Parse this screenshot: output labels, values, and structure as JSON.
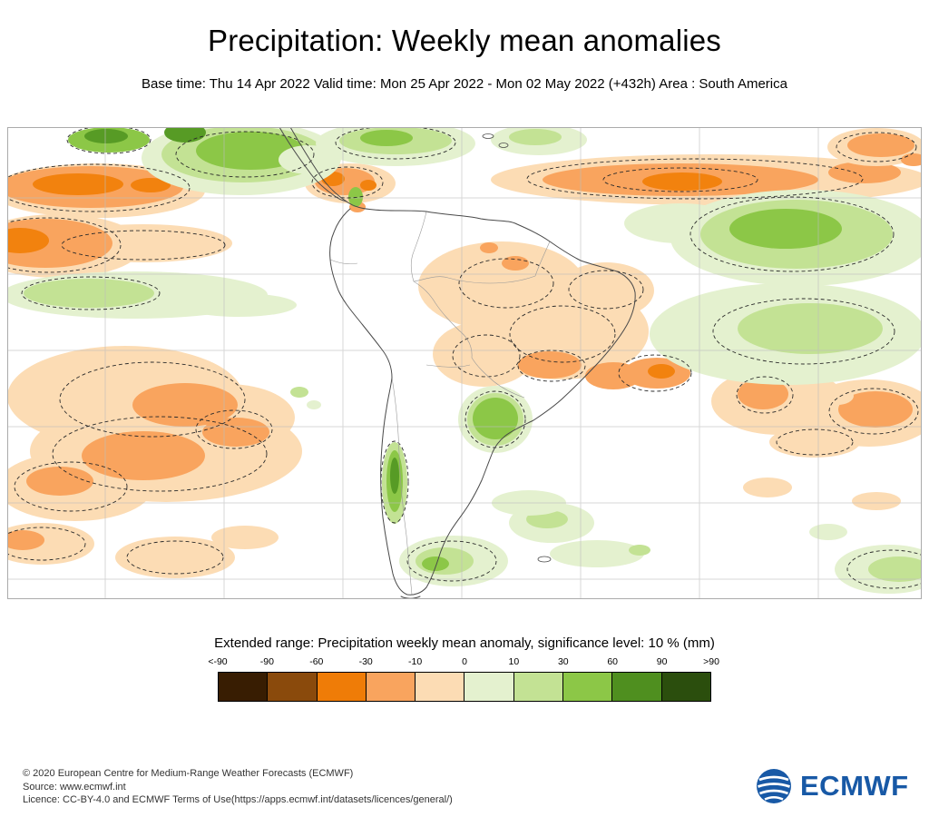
{
  "header": {
    "title": "Precipitation: Weekly mean anomalies",
    "subtitle": "Base time: Thu 14 Apr 2022 Valid time: Mon 25 Apr 2022 - Mon 02 May 2022 (+432h) Area : South America"
  },
  "map": {
    "type": "filled-contour anomaly map",
    "area": "South America",
    "positive_anomaly_color_family": "green",
    "negative_anomaly_color_family": "orange-brown",
    "significance_contour_style": "dashed"
  },
  "legend": {
    "title": "Extended range: Precipitation weekly mean anomaly, significance level: 10 % (mm)",
    "ticks": [
      "<-90",
      "-90",
      "-60",
      "-30",
      "-10",
      "0",
      "10",
      "30",
      "60",
      "90",
      ">90"
    ],
    "colors": [
      "#381d02",
      "#8a4a0c",
      "#ef7c07",
      "#f9a45e",
      "#fcdcb4",
      "#e4f1cf",
      "#c3e294",
      "#8cc747",
      "#4f8f1f",
      "#2b4e0d"
    ]
  },
  "footer": {
    "line1": "© 2020 European Centre for Medium-Range Weather Forecasts (ECMWF)",
    "line2": "Source: www.ecmwf.int",
    "line3": "Licence: CC-BY-4.0 and ECMWF Terms of Use(https://apps.ecmwf.int/datasets/licences/general/)",
    "logo_text": "ECMWF"
  },
  "colors": {
    "paleOrange": "#fcdcb4",
    "midOrange": "#f9a45e",
    "brightOrange": "#f2820e",
    "paleGreen": "#e4f1cf",
    "lightGreen": "#c3e294",
    "midGreen": "#8cc747",
    "darkGreen": "#579b25",
    "grid": "#bdbdbd",
    "coast": "#4a4a4a",
    "cb": "#999999",
    "contour": "#2b2b2b",
    "mapBorder": "#ababab",
    "logo": "#1859a6"
  }
}
